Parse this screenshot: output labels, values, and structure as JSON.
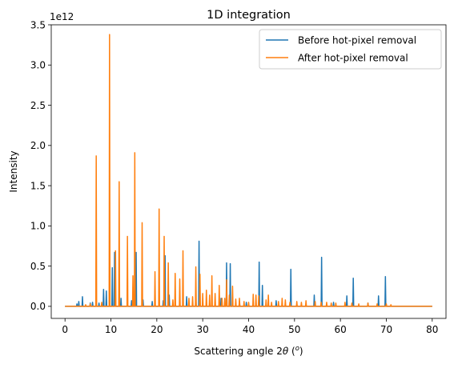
{
  "chart_data": {
    "type": "line",
    "title": "1D integration",
    "xlabel_prefix": "Scattering angle 2",
    "xlabel_theta": "θ",
    "xlabel_unit_open": " (",
    "xlabel_unit_sup": "o",
    "xlabel_unit_close": ")",
    "ylabel": "Intensity",
    "y_offset_text": "1e12",
    "y_scale": 1000000000000.0,
    "xlim": [
      -3,
      83
    ],
    "ylim": [
      -0.15,
      3.5
    ],
    "xticks": [
      0,
      10,
      20,
      30,
      40,
      50,
      60,
      70,
      80
    ],
    "yticks": [
      0.0,
      0.5,
      1.0,
      1.5,
      2.0,
      2.5,
      3.0,
      3.5
    ],
    "ytick_labels": [
      "0.0",
      "0.5",
      "1.0",
      "1.5",
      "2.0",
      "2.5",
      "3.0",
      "3.5"
    ],
    "legend_position": "upper right",
    "x_range": [
      0,
      80
    ],
    "series": [
      {
        "name": "Before hot-pixel removal",
        "color": "#1f77b4",
        "peaks": [
          [
            2.6,
            0.03
          ],
          [
            3.0,
            0.06
          ],
          [
            3.8,
            0.12
          ],
          [
            5.5,
            0.04
          ],
          [
            6.0,
            0.05
          ],
          [
            7.4,
            0.04
          ],
          [
            8.4,
            0.21
          ],
          [
            9.0,
            0.19
          ],
          [
            10.3,
            0.48
          ],
          [
            10.8,
            0.67
          ],
          [
            12.2,
            0.1
          ],
          [
            14.5,
            0.07
          ],
          [
            15.5,
            0.67
          ],
          [
            17.0,
            0.08
          ],
          [
            19.0,
            0.06
          ],
          [
            21.4,
            0.07
          ],
          [
            21.8,
            0.63
          ],
          [
            22.7,
            0.14
          ],
          [
            26.5,
            0.12
          ],
          [
            28.5,
            0.1
          ],
          [
            29.2,
            0.81
          ],
          [
            34.0,
            0.1
          ],
          [
            35.2,
            0.54
          ],
          [
            36.0,
            0.53
          ],
          [
            38.0,
            0.06
          ],
          [
            39.5,
            0.05
          ],
          [
            42.3,
            0.55
          ],
          [
            43.0,
            0.26
          ],
          [
            46.0,
            0.07
          ],
          [
            49.2,
            0.46
          ],
          [
            54.3,
            0.14
          ],
          [
            55.9,
            0.61
          ],
          [
            58.5,
            0.05
          ],
          [
            61.4,
            0.13
          ],
          [
            62.8,
            0.35
          ],
          [
            66.0,
            0.04
          ],
          [
            68.3,
            0.13
          ],
          [
            69.8,
            0.37
          ]
        ]
      },
      {
        "name": "After hot-pixel removal",
        "color": "#ff7f0e",
        "peaks": [
          [
            4.5,
            0.02
          ],
          [
            5.5,
            0.03
          ],
          [
            6.8,
            1.87
          ],
          [
            8.0,
            0.05
          ],
          [
            9.7,
            3.38
          ],
          [
            11.0,
            0.69
          ],
          [
            11.8,
            1.55
          ],
          [
            13.6,
            0.87
          ],
          [
            14.8,
            0.38
          ],
          [
            15.2,
            1.91
          ],
          [
            16.8,
            1.04
          ],
          [
            19.6,
            0.43
          ],
          [
            20.5,
            1.21
          ],
          [
            21.6,
            0.87
          ],
          [
            22.5,
            0.54
          ],
          [
            23.5,
            0.08
          ],
          [
            24.0,
            0.41
          ],
          [
            25.0,
            0.34
          ],
          [
            25.7,
            0.69
          ],
          [
            27.0,
            0.1
          ],
          [
            27.8,
            0.12
          ],
          [
            28.5,
            0.49
          ],
          [
            29.4,
            0.4
          ],
          [
            30.0,
            0.16
          ],
          [
            30.8,
            0.2
          ],
          [
            31.5,
            0.14
          ],
          [
            32.0,
            0.38
          ],
          [
            32.7,
            0.16
          ],
          [
            33.6,
            0.26
          ],
          [
            34.2,
            0.1
          ],
          [
            34.8,
            0.1
          ],
          [
            35.2,
            0.33
          ],
          [
            35.8,
            0.14
          ],
          [
            36.5,
            0.25
          ],
          [
            37.2,
            0.09
          ],
          [
            38.0,
            0.1
          ],
          [
            39.0,
            0.06
          ],
          [
            40.0,
            0.05
          ],
          [
            41.0,
            0.15
          ],
          [
            41.6,
            0.14
          ],
          [
            42.2,
            0.13
          ],
          [
            43.8,
            0.08
          ],
          [
            44.3,
            0.14
          ],
          [
            45.0,
            0.05
          ],
          [
            46.5,
            0.06
          ],
          [
            47.3,
            0.1
          ],
          [
            48.0,
            0.08
          ],
          [
            49.0,
            0.05
          ],
          [
            50.5,
            0.06
          ],
          [
            51.5,
            0.05
          ],
          [
            52.5,
            0.07
          ],
          [
            54.5,
            0.06
          ],
          [
            55.8,
            0.05
          ],
          [
            57.0,
            0.05
          ],
          [
            58.0,
            0.04
          ],
          [
            59.0,
            0.04
          ],
          [
            61.0,
            0.05
          ],
          [
            62.5,
            0.04
          ],
          [
            64.0,
            0.03
          ],
          [
            66.0,
            0.04
          ],
          [
            68.0,
            0.03
          ],
          [
            70.0,
            0.03
          ],
          [
            71.0,
            0.02
          ]
        ]
      }
    ]
  }
}
